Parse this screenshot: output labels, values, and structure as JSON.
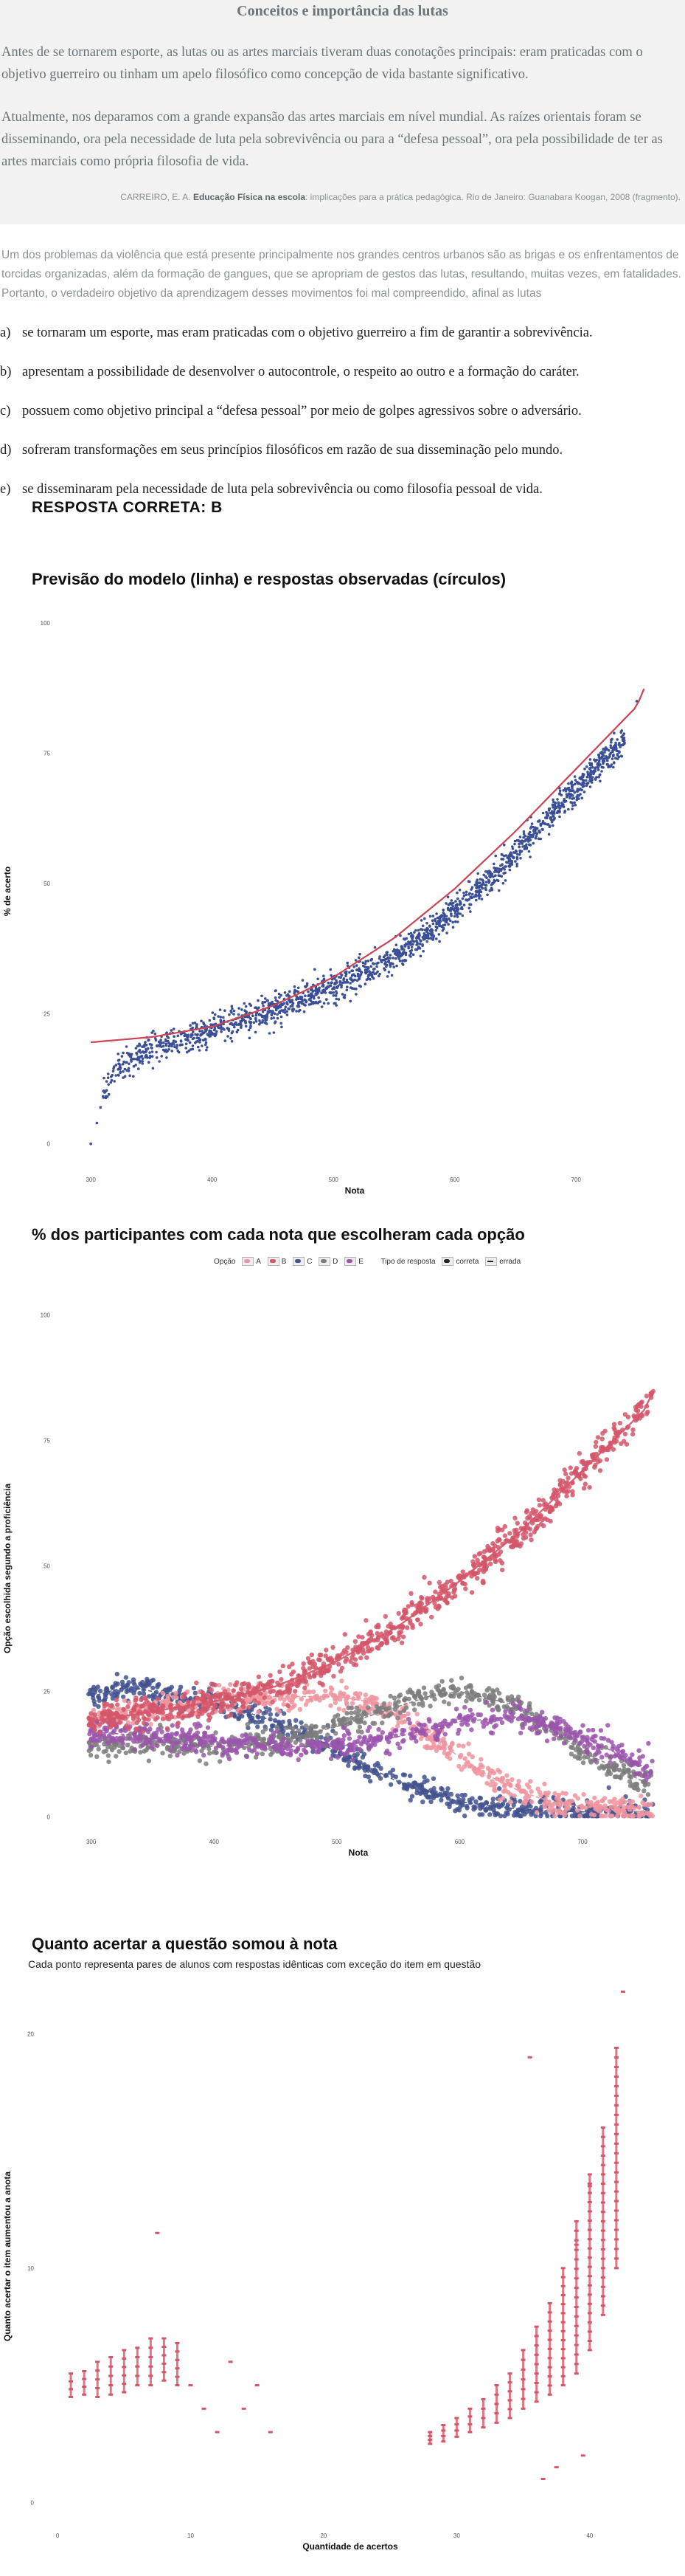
{
  "text_box": {
    "title": "Conceitos e importância das lutas",
    "paragraph1": "Antes de se tornarem esporte, as lutas ou as artes marciais tiveram duas conotações principais: eram praticadas com o objetivo guerreiro ou tinham um apelo filosófico como concepção de vida bastante significativo.",
    "paragraph2": "Atualmente, nos deparamos com a grande expansão das artes marciais em nível mundial. As raízes orientais foram se disseminando, ora pela necessidade de luta pela sobrevivência ou para a “defesa pessoal”, ora pela possibilidade de ter as artes marciais como própria filosofia de vida.",
    "citation_prefix": "CARREIRO, E. A.",
    "citation_bold": "Educação Física na escola",
    "citation_suffix": ": implicações para a prática pedagógica. Rio de Janeiro: Guanabara Koogan, 2008 (fragmento)."
  },
  "question": {
    "stem": "Um dos problemas da violência que está presente principalmente nos grandes centros urbanos são as brigas e os enfrentamentos de torcidas organizadas, além da formação de gangues, que se apropriam de gestos das lutas, resultando, muitas vezes, em fatalidades. Portanto, o verdadeiro objetivo da aprendizagem desses movimentos foi mal compreendido, afinal as lutas",
    "options": [
      {
        "letter": "a)",
        "text": "se tornaram um esporte, mas eram praticadas com o objetivo guerreiro a fim de garantir a sobrevivência."
      },
      {
        "letter": "b)",
        "text": "apresentam a possibilidade de desenvolver o autocontrole, o respeito ao outro e a formação do caráter."
      },
      {
        "letter": "c)",
        "text": "possuem como objetivo principal a “defesa pessoal” por meio de golpes agressivos sobre o adversário."
      },
      {
        "letter": "d)",
        "text": "sofreram transformações em seus princípios filosóficos em razão de sua disseminação pelo mundo."
      },
      {
        "letter": "e)",
        "text": "se disseminaram pela necessidade de luta pela sobrevivência ou como filosofia pessoal de vida."
      }
    ],
    "answer_label": "RESPOSTA CORRETA: B"
  },
  "colors": {
    "A": "#f0949f",
    "B": "#d4566a",
    "C": "#43528e",
    "D": "#7c7c7c",
    "E": "#9b55ad",
    "model": "#cc4455",
    "observed": "#3a4f96"
  },
  "chart_data": [
    {
      "type": "scatter",
      "title": "Previsão do modelo (linha) e respostas observadas (círculos)",
      "xlabel": "Nota",
      "ylabel": "% de acerto",
      "xticks": [
        "300",
        "400",
        "500",
        "600",
        "700"
      ],
      "yticks": [
        "0",
        "25",
        "50",
        "75",
        "100"
      ],
      "xlim": [
        275,
        760
      ],
      "ylim": [
        -5,
        102
      ],
      "series": [
        {
          "values": [
            [
              300,
              0
            ],
            [
              305,
              4
            ],
            [
              310,
              10
            ],
            [
              325,
              15
            ],
            [
              350,
              18
            ],
            [
              375,
              20
            ],
            [
              400,
              22
            ],
            [
              425,
              24
            ],
            [
              450,
              26
            ],
            [
              475,
              28
            ],
            [
              500,
              30
            ],
            [
              525,
              33
            ],
            [
              550,
              36
            ],
            [
              575,
              40
            ],
            [
              600,
              45
            ],
            [
              625,
              50
            ],
            [
              650,
              56
            ],
            [
              675,
              62
            ],
            [
              700,
              68
            ],
            [
              720,
              73
            ],
            [
              740,
              77
            ],
            [
              750,
              85
            ]
          ]
        },
        {
          "values": [
            [
              300,
              19.5
            ],
            [
              350,
              20.5
            ],
            [
              400,
              22.5
            ],
            [
              450,
              26.5
            ],
            [
              500,
              32
            ],
            [
              550,
              39.5
            ],
            [
              600,
              49
            ],
            [
              650,
              60
            ],
            [
              700,
              72
            ],
            [
              750,
              84
            ],
            [
              758,
              88.5
            ]
          ]
        }
      ]
    },
    {
      "type": "scatter",
      "title": "% dos participantes com cada nota que escolheram cada opção",
      "xlabel": "Nota",
      "ylabel": "Opção escolhida segundo a proficiência",
      "legend_title_option": "Opção",
      "legend_title_type": "Tipo de resposta",
      "legend_options": [
        "A",
        "B",
        "C",
        "D",
        "E"
      ],
      "legend_types": [
        "correta",
        "errada"
      ],
      "xticks": [
        "300",
        "400",
        "500",
        "600",
        "700"
      ],
      "yticks": [
        "0",
        "25",
        "50",
        "75",
        "100"
      ],
      "xlim": [
        275,
        760
      ],
      "ylim": [
        -3,
        102
      ],
      "series": [
        {
          "name": "A",
          "values": [
            [
              300,
              20
            ],
            [
              350,
              22
            ],
            [
              400,
              23
            ],
            [
              450,
              24
            ],
            [
              500,
              24
            ],
            [
              525,
              23
            ],
            [
              550,
              20
            ],
            [
              575,
              16
            ],
            [
              600,
              12
            ],
            [
              625,
              8
            ],
            [
              650,
              5
            ],
            [
              675,
              3
            ],
            [
              700,
              2
            ],
            [
              750,
              1
            ]
          ]
        },
        {
          "name": "B",
          "values": [
            [
              300,
              19
            ],
            [
              350,
              21
            ],
            [
              400,
              23
            ],
            [
              450,
              26
            ],
            [
              500,
              31
            ],
            [
              550,
              38
            ],
            [
              600,
              47
            ],
            [
              650,
              57
            ],
            [
              700,
              69
            ],
            [
              750,
              81
            ],
            [
              758,
              85
            ]
          ]
        },
        {
          "name": "C",
          "values": [
            [
              300,
              24
            ],
            [
              330,
              26
            ],
            [
              350,
              25
            ],
            [
              400,
              23
            ],
            [
              450,
              19
            ],
            [
              500,
              13
            ],
            [
              550,
              7
            ],
            [
              600,
              3
            ],
            [
              650,
              1.5
            ],
            [
              700,
              1
            ],
            [
              750,
              1
            ]
          ]
        },
        {
          "name": "D",
          "values": [
            [
              300,
              14
            ],
            [
              350,
              15
            ],
            [
              400,
              14
            ],
            [
              450,
              15
            ],
            [
              500,
              18
            ],
            [
              550,
              22
            ],
            [
              575,
              24
            ],
            [
              600,
              25
            ],
            [
              650,
              22
            ],
            [
              700,
              13
            ],
            [
              750,
              7
            ]
          ]
        },
        {
          "name": "E",
          "values": [
            [
              300,
              17
            ],
            [
              350,
              16
            ],
            [
              400,
              15
            ],
            [
              450,
              14
            ],
            [
              500,
              14
            ],
            [
              550,
              16
            ],
            [
              600,
              19
            ],
            [
              650,
              20
            ],
            [
              700,
              16
            ],
            [
              750,
              10
            ]
          ]
        }
      ]
    },
    {
      "type": "scatter",
      "title": "Quanto acertar a questão somou à nota",
      "subtitle": "Cada ponto representa pares de alunos com respostas idênticas com exceção do item em questão",
      "xlabel": "Quantidade de acertos",
      "ylabel": "Quanto acertar o item aumentou a anota",
      "xticks": [
        "0",
        "10",
        "20",
        "30",
        "40"
      ],
      "yticks": [
        "0",
        "10",
        "20"
      ],
      "xlim": [
        -1,
        45
      ],
      "ylim": [
        -1,
        22
      ],
      "series": [
        {
          "name": "ranges",
          "values": [
            [
              1,
              4.5,
              5.5
            ],
            [
              2,
              4.6,
              5.6
            ],
            [
              3,
              4.5,
              6
            ],
            [
              4,
              4.6,
              6.2
            ],
            [
              5,
              4.7,
              6.5
            ],
            [
              6,
              5,
              6.6
            ],
            [
              7,
              5,
              7
            ],
            [
              8,
              5.2,
              7
            ],
            [
              9,
              5,
              6.8
            ],
            [
              28,
              2.5,
              3
            ],
            [
              29,
              2.6,
              3.3
            ],
            [
              30,
              2.8,
              3.6
            ],
            [
              31,
              3,
              4
            ],
            [
              32,
              3.2,
              4.4
            ],
            [
              33,
              3.4,
              5
            ],
            [
              34,
              3.6,
              5.5
            ],
            [
              35,
              4,
              6.5
            ],
            [
              36,
              4.3,
              7.5
            ],
            [
              37,
              4.6,
              8.5
            ],
            [
              38,
              5,
              10
            ],
            [
              39,
              5.5,
              12
            ],
            [
              40,
              6.5,
              14
            ],
            [
              41,
              8,
              16
            ],
            [
              42,
              10,
              19.4
            ]
          ]
        },
        {
          "name": "outliers",
          "values": [
            [
              7.5,
              11.5
            ],
            [
              10,
              5
            ],
            [
              11,
              4
            ],
            [
              12,
              3
            ],
            [
              13,
              6
            ],
            [
              14,
              4
            ],
            [
              15,
              5
            ],
            [
              16,
              3
            ],
            [
              35.5,
              19
            ],
            [
              36.5,
              1
            ],
            [
              37.5,
              1.5
            ],
            [
              39.5,
              2
            ],
            [
              42.5,
              21.8
            ],
            [
              39,
              11
            ],
            [
              40,
              13.5
            ]
          ]
        }
      ]
    }
  ]
}
